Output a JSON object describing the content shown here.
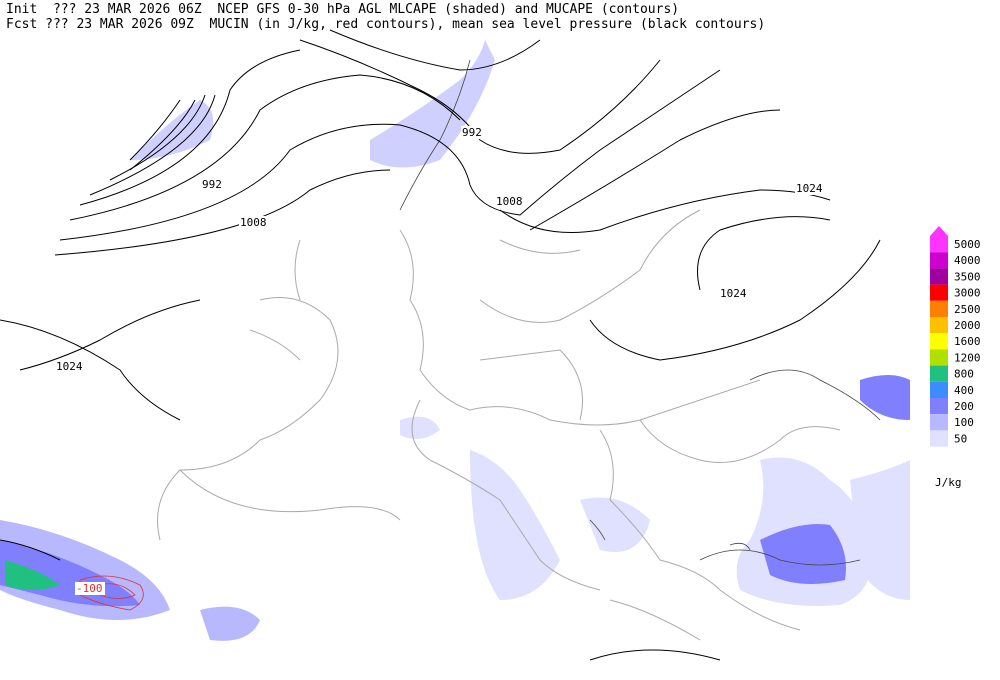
{
  "header": {
    "init_line": "Init  ??? 23 MAR 2026 06Z  NCEP GFS 0-30 hPa AGL MLCAPE (shaded) and MUCAPE (contours)",
    "fcst_line": "Fcst ??? 23 MAR 2026 09Z  MUCIN (in J/kg, red contours), mean sea level pressure (black contours)"
  },
  "contour_labels": [
    {
      "text": "992",
      "color": "#000000"
    },
    {
      "text": "992",
      "color": "#000000"
    },
    {
      "text": "1008",
      "color": "#000000"
    },
    {
      "text": "1008",
      "color": "#000000"
    },
    {
      "text": "1024",
      "color": "#000000"
    },
    {
      "text": "1024",
      "color": "#000000"
    },
    {
      "text": "1024",
      "color": "#000000"
    },
    {
      "text": "-100",
      "color": "#e03030"
    }
  ],
  "legend": {
    "entries": [
      {
        "label": "5000",
        "color": "#ff33ff"
      },
      {
        "label": "4000",
        "color": "#d000d0"
      },
      {
        "label": "3500",
        "color": "#a000a0"
      },
      {
        "label": "3000",
        "color": "#ff0000"
      },
      {
        "label": "2500",
        "color": "#ff8000"
      },
      {
        "label": "2000",
        "color": "#ffc000"
      },
      {
        "label": "1600",
        "color": "#ffff00"
      },
      {
        "label": "1200",
        "color": "#b0e000"
      },
      {
        "label": "800",
        "color": "#20c080"
      },
      {
        "label": "400",
        "color": "#3c8cff"
      },
      {
        "label": "200",
        "color": "#8080ff"
      },
      {
        "label": "100",
        "color": "#b8b8ff"
      },
      {
        "label": "50",
        "color": "#e0e0ff"
      }
    ],
    "unit": "J/kg"
  }
}
